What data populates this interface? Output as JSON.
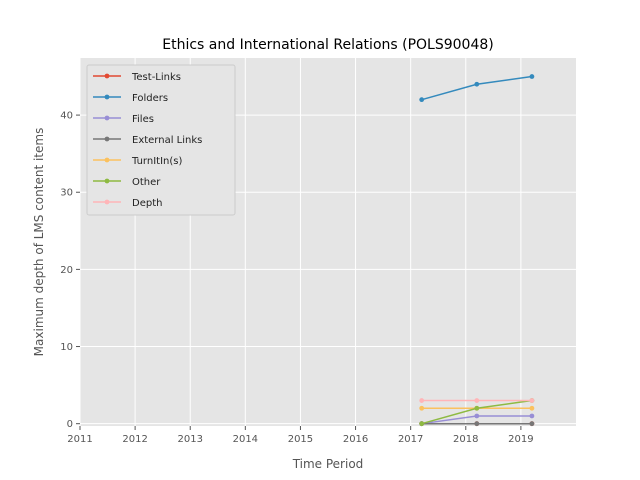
{
  "chart_data": {
    "type": "line",
    "title": "Ethics and International Relations (POLS90048)",
    "xlabel": "Time Period",
    "ylabel": "Maximum depth of LMS content items",
    "xlim": [
      2011,
      2020
    ],
    "ylim": [
      -0.3,
      47.4
    ],
    "xticks": [
      2011,
      2012,
      2013,
      2014,
      2015,
      2016,
      2017,
      2018,
      2019
    ],
    "yticks": [
      0,
      10,
      20,
      30,
      40
    ],
    "grid": true,
    "legend_position": "upper-left",
    "x": [
      2017.2,
      2018.2,
      2019.2
    ],
    "series": [
      {
        "name": "Test-Links",
        "color": "#e24a33",
        "values": [
          0,
          0,
          0
        ]
      },
      {
        "name": "Folders",
        "color": "#348abd",
        "values": [
          42,
          44,
          45
        ]
      },
      {
        "name": "Files",
        "color": "#988ed5",
        "values": [
          0,
          1,
          1
        ]
      },
      {
        "name": "External Links",
        "color": "#777777",
        "values": [
          0,
          0,
          0
        ]
      },
      {
        "name": "TurnItIn(s)",
        "color": "#fbc15e",
        "values": [
          2,
          2,
          2
        ]
      },
      {
        "name": "Other",
        "color": "#8eba42",
        "values": [
          0,
          2,
          3
        ]
      },
      {
        "name": "Depth",
        "color": "#ffb5b8",
        "values": [
          3,
          3,
          3
        ]
      }
    ]
  }
}
